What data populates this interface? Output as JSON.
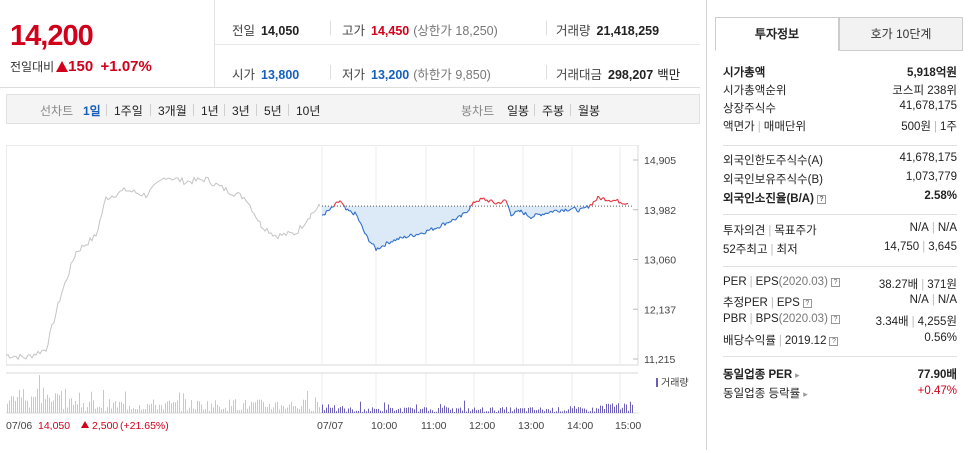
{
  "quote": {
    "price": "14,200",
    "change_label": "전일대비",
    "change_amount": "150",
    "change_pct": "+1.07%",
    "prev_close": {
      "label": "전일",
      "value": "14,050"
    },
    "high": {
      "label": "고가",
      "value": "14,450",
      "sub": "(상한가 18,250)"
    },
    "volume": {
      "label": "거래량",
      "value": "21,418,259"
    },
    "open": {
      "label": "시가",
      "value": "13,800"
    },
    "low": {
      "label": "저가",
      "value": "13,200",
      "sub": "(하한가 9,850)"
    },
    "amount": {
      "label": "거래대금",
      "value": "298,207",
      "unit": "백만"
    }
  },
  "tabs": {
    "line_label": "선차트",
    "line_items": [
      "1일",
      "1주일",
      "3개월",
      "1년",
      "3년",
      "5년",
      "10년"
    ],
    "candle_label": "봉차트",
    "candle_items": [
      "일봉",
      "주봉",
      "월봉"
    ]
  },
  "chart_data": {
    "type": "line",
    "y_ticks": [
      "14,905",
      "13,982",
      "13,060",
      "12,137",
      "11,215"
    ],
    "ylim": [
      11215,
      14905
    ],
    "reference_price": 14050,
    "x_ticks": [
      "07/07",
      "10:00",
      "11:00",
      "12:00",
      "13:00",
      "14:00",
      "15:00"
    ],
    "prev_day_label": "07/06",
    "prev_day_close": "14,050",
    "prev_day_change": "2,500",
    "prev_day_pct": "(+21.65%)",
    "volume_legend": "거래량",
    "colors": {
      "up": "#e0323c",
      "down": "#2f6ec8",
      "prev": "#c8c8c8",
      "fill": "#dce9f7"
    }
  },
  "info": {
    "tab_active": "투자정보",
    "tab_other": "호가 10단계",
    "market_cap": {
      "label": "시가총액",
      "value": "5,918억원"
    },
    "market_cap_rank": {
      "label": "시가총액순위",
      "value": "코스피 238위"
    },
    "listed_shares": {
      "label": "상장주식수",
      "value": "41,678,175"
    },
    "par_value": {
      "label": "액면가",
      "label2": "매매단위",
      "value": "500원",
      "value2": "1주"
    },
    "foreign_limit": {
      "label": "외국인한도주식수(A)",
      "value": "41,678,175"
    },
    "foreign_hold": {
      "label": "외국인보유주식수(B)",
      "value": "1,073,779"
    },
    "foreign_ratio": {
      "label": "외국인소진율(B/A)",
      "value": "2.58%"
    },
    "opinion": {
      "label": "투자의견",
      "label2": "목표주가",
      "value": "N/A",
      "value2": "N/A"
    },
    "week52": {
      "label": "52주최고",
      "label2": "최저",
      "value": "14,750",
      "value2": "3,645"
    },
    "per": {
      "label": "PER",
      "label2": "EPS",
      "period": "(2020.03)",
      "value": "38.27배",
      "value2": "371원"
    },
    "est_per": {
      "label": "추정PER",
      "label2": "EPS",
      "value": "N/A",
      "value2": "N/A"
    },
    "pbr": {
      "label": "PBR",
      "label2": "BPS",
      "period": "(2020.03)",
      "value": "3.34배",
      "value2": "4,255원"
    },
    "dividend": {
      "label": "배당수익률",
      "period": "2019.12",
      "value": "0.56%"
    },
    "sector_per": {
      "label": "동일업종 PER",
      "value": "77.90배"
    },
    "sector_change": {
      "label": "동일업종 등락률",
      "value": "+0.47%"
    }
  }
}
